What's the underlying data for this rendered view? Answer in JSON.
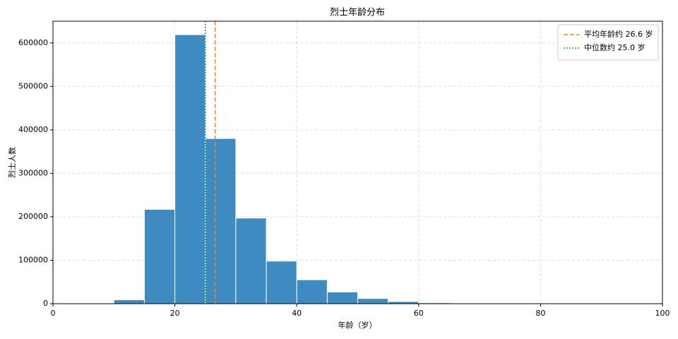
{
  "chart_data": {
    "type": "histogram",
    "title": "烈士年龄分布",
    "x_label": "年龄（岁）",
    "y_label": "烈士人数",
    "bins": [
      0,
      5,
      10,
      15,
      20,
      25,
      30,
      35,
      40,
      45,
      50,
      55,
      60,
      65,
      70,
      75,
      80,
      85,
      90,
      95,
      100
    ],
    "counts": [
      0,
      0,
      9000,
      217000,
      619000,
      380000,
      197000,
      98000,
      55000,
      27000,
      12000,
      5000,
      2000,
      800,
      300,
      100,
      0,
      0,
      0,
      0
    ],
    "color": "#3d8bc0",
    "xlim": [
      0,
      100
    ],
    "xticks": [
      0,
      20,
      40,
      60,
      80,
      100
    ],
    "ylim": [
      0,
      650000
    ],
    "yticks": [
      0,
      100000,
      200000,
      300000,
      400000,
      500000,
      600000
    ],
    "grid": true,
    "legend": "upper right",
    "lines": [
      {
        "name": "平均年龄约 26.6 岁",
        "value": 26.6,
        "color": "#ff7f0e",
        "style": "dashed"
      },
      {
        "name": "中位数约 25.0 岁",
        "value": 25.0,
        "color": "#2ca02c",
        "style": "dotted"
      }
    ]
  }
}
